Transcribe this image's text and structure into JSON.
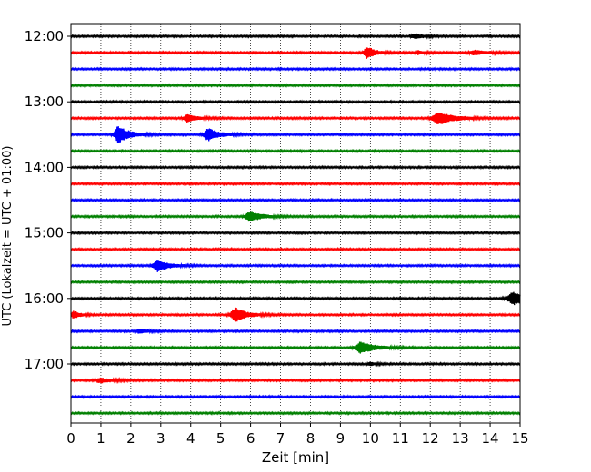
{
  "chart_data": {
    "type": "line",
    "subtype": "seismogram-helicorder",
    "xlabel": "Zeit  [min]",
    "ylabel": "UTC (Lokalzeit = UTC + 01:00)",
    "xlim": [
      0,
      15
    ],
    "x_ticks": [
      "0",
      "1",
      "2",
      "3",
      "4",
      "5",
      "6",
      "7",
      "8",
      "9",
      "10",
      "11",
      "12",
      "13",
      "14",
      "15"
    ],
    "y_tick_labels": [
      "12:00",
      "13:00",
      "14:00",
      "15:00",
      "16:00",
      "17:00"
    ],
    "grid": "vertical-dotted",
    "line_colors": [
      "#000000",
      "#ff0000",
      "#0000ff",
      "#008000"
    ],
    "trace_count": 24,
    "trace_minutes": 15,
    "noise_level": 0.25,
    "events": [
      {
        "trace": 0,
        "time": 11.5,
        "amp": 0.6,
        "dur": 0.3
      },
      {
        "trace": 1,
        "time": 9.9,
        "amp": 1.6,
        "dur": 0.25
      },
      {
        "trace": 1,
        "time": 11.6,
        "amp": 0.5,
        "dur": 0.2
      },
      {
        "trace": 1,
        "time": 13.5,
        "amp": 0.6,
        "dur": 0.4
      },
      {
        "trace": 5,
        "time": 3.9,
        "amp": 1.0,
        "dur": 0.3
      },
      {
        "trace": 5,
        "time": 12.3,
        "amp": 1.6,
        "dur": 0.5
      },
      {
        "trace": 6,
        "time": 1.6,
        "amp": 2.2,
        "dur": 0.35
      },
      {
        "trace": 6,
        "time": 4.6,
        "amp": 1.6,
        "dur": 0.35
      },
      {
        "trace": 11,
        "time": 6.0,
        "amp": 1.3,
        "dur": 0.4
      },
      {
        "trace": 14,
        "time": 2.9,
        "amp": 1.6,
        "dur": 0.35
      },
      {
        "trace": 16,
        "time": 14.8,
        "amp": 1.6,
        "dur": 0.5
      },
      {
        "trace": 17,
        "time": 0.1,
        "amp": 1.0,
        "dur": 0.2
      },
      {
        "trace": 17,
        "time": 5.5,
        "amp": 1.9,
        "dur": 0.35
      },
      {
        "trace": 18,
        "time": 2.3,
        "amp": 0.6,
        "dur": 0.25
      },
      {
        "trace": 19,
        "time": 9.7,
        "amp": 1.5,
        "dur": 0.45
      },
      {
        "trace": 20,
        "time": 10.0,
        "amp": 0.4,
        "dur": 0.2
      },
      {
        "trace": 21,
        "time": 1.0,
        "amp": 0.6,
        "dur": 0.4
      }
    ]
  }
}
